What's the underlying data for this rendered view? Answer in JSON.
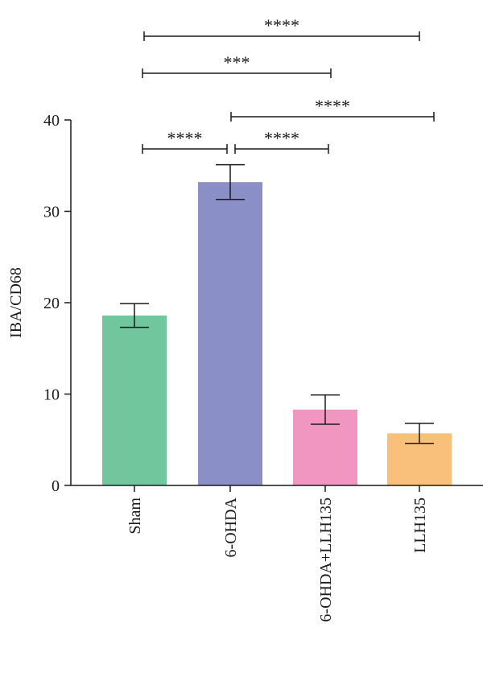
{
  "chart_data": {
    "type": "bar",
    "categories": [
      "Sham",
      "6-OHDA",
      "6-OHDA+LLH135",
      "LLH135"
    ],
    "values": [
      18.6,
      33.2,
      8.3,
      5.7
    ],
    "errors": [
      1.3,
      1.9,
      1.6,
      1.1
    ],
    "colors": [
      "#72c69e",
      "#8b8fc8",
      "#f196c0",
      "#f9c07c"
    ],
    "ylabel": "IBA/CD68",
    "xlabel": "",
    "ylim": [
      0,
      40
    ],
    "yticks": [
      0,
      10,
      20,
      30,
      40
    ],
    "grid": false,
    "significance": [
      {
        "from": 0,
        "to": 3,
        "label": "****"
      },
      {
        "from": 0,
        "to": 2,
        "label": "***"
      },
      {
        "from": 1,
        "to": 3,
        "label": "****"
      },
      {
        "from": 0,
        "to": 1,
        "label": "****"
      },
      {
        "from": 1,
        "to": 2,
        "label": "****"
      }
    ]
  }
}
